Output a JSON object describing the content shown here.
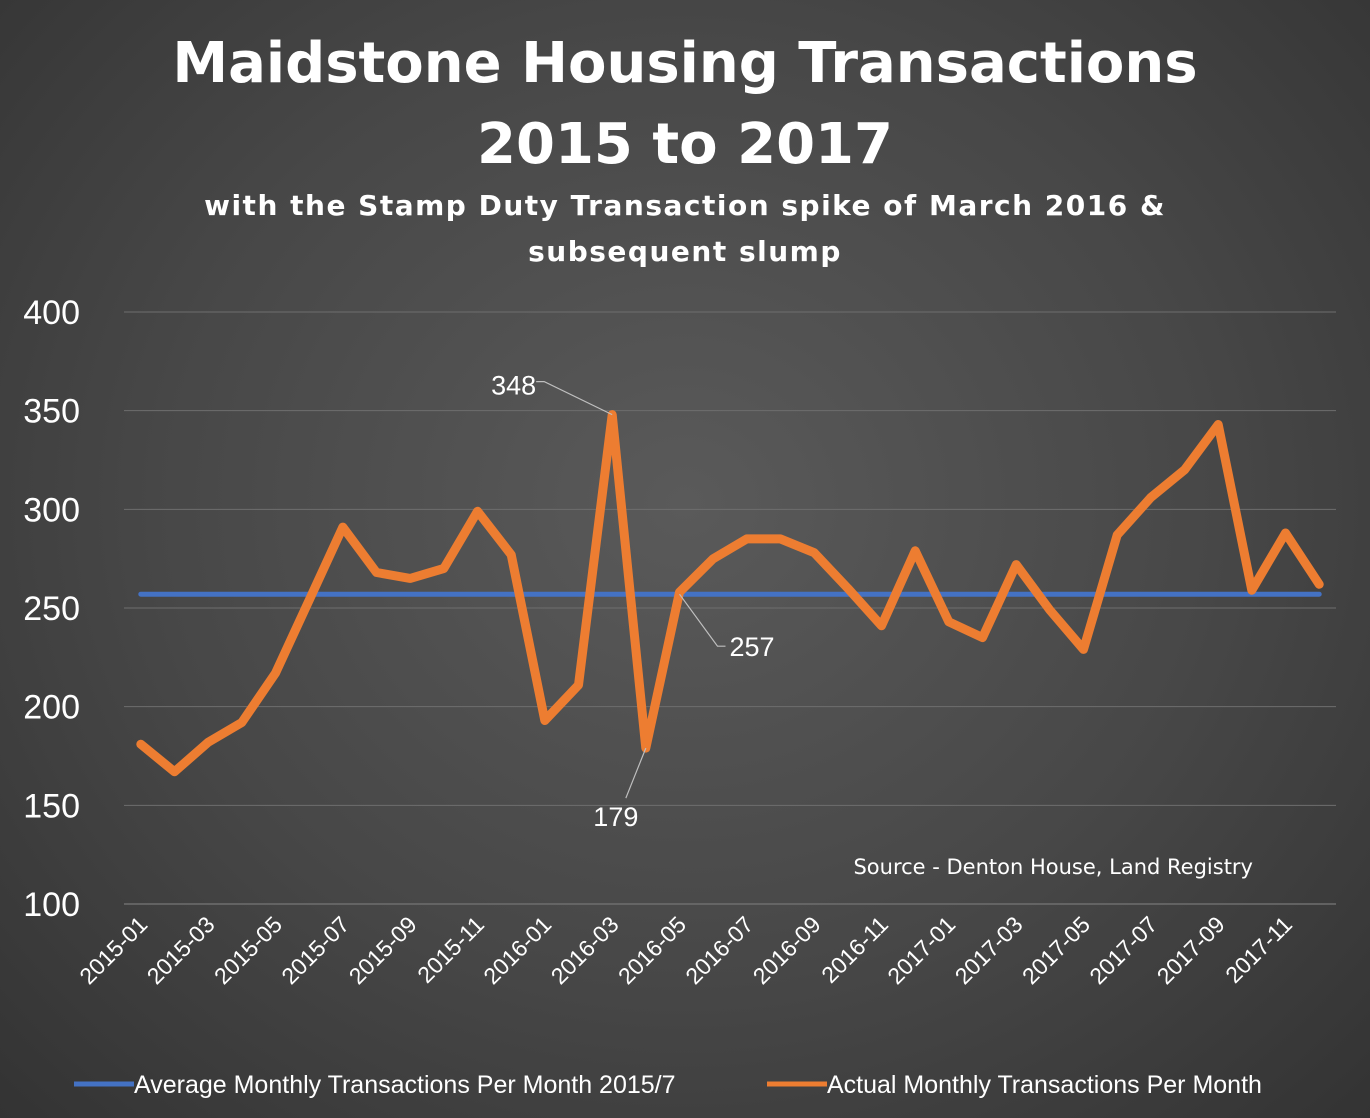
{
  "colors": {
    "average": "#4472C4",
    "actual": "#ED7D31",
    "grid": "#6e6e6e",
    "leader": "#bfbfbf"
  },
  "chart_data": {
    "type": "line",
    "title": [
      "Maidstone Housing Transactions",
      "2015 to 2017"
    ],
    "subtitle": [
      "with the Stamp Duty Transaction spike of March 2016 &",
      "subsequent slump"
    ],
    "source": "Source - Denton House, Land Registry",
    "ylim": [
      100,
      400
    ],
    "yticks": [
      100,
      150,
      200,
      250,
      300,
      350,
      400
    ],
    "grid": true,
    "legend_position": "bottom",
    "x": [
      "2015-01",
      "2015-02",
      "2015-03",
      "2015-04",
      "2015-05",
      "2015-06",
      "2015-07",
      "2015-08",
      "2015-09",
      "2015-10",
      "2015-11",
      "2015-12",
      "2016-01",
      "2016-02",
      "2016-03",
      "2016-04",
      "2016-05",
      "2016-06",
      "2016-07",
      "2016-08",
      "2016-09",
      "2016-10",
      "2016-11",
      "2016-12",
      "2017-01",
      "2017-02",
      "2017-03",
      "2017-04",
      "2017-05",
      "2017-06",
      "2017-07",
      "2017-08",
      "2017-09",
      "2017-10",
      "2017-11",
      "2017-12"
    ],
    "xtick_labels": [
      "2015-01",
      "2015-03",
      "2015-05",
      "2015-07",
      "2015-09",
      "2015-11",
      "2016-01",
      "2016-03",
      "2016-05",
      "2016-07",
      "2016-09",
      "2016-11",
      "2017-01",
      "2017-03",
      "2017-05",
      "2017-07",
      "2017-09",
      "2017-11"
    ],
    "series": [
      {
        "name": "Average Monthly Transactions Per Month 2015/7",
        "color": "#4472C4",
        "values": [
          257,
          257,
          257,
          257,
          257,
          257,
          257,
          257,
          257,
          257,
          257,
          257,
          257,
          257,
          257,
          257,
          257,
          257,
          257,
          257,
          257,
          257,
          257,
          257,
          257,
          257,
          257,
          257,
          257,
          257,
          257,
          257,
          257,
          257,
          257,
          257
        ]
      },
      {
        "name": "Actual Monthly Transactions Per Month",
        "color": "#ED7D31",
        "values": [
          181,
          167,
          182,
          192,
          217,
          254,
          291,
          268,
          265,
          270,
          299,
          277,
          193,
          211,
          348,
          179,
          258,
          275,
          285,
          285,
          278,
          260,
          241,
          279,
          243,
          235,
          272,
          249,
          229,
          287,
          306,
          320,
          343,
          259,
          288,
          262
        ]
      }
    ],
    "data_labels": [
      {
        "series": 1,
        "x": "2016-03",
        "value": 348,
        "text": "348"
      },
      {
        "series": 1,
        "x": "2016-04",
        "value": 179,
        "text": "179"
      },
      {
        "series": 0,
        "x": "2016-05",
        "value": 257,
        "text": "257"
      }
    ]
  }
}
